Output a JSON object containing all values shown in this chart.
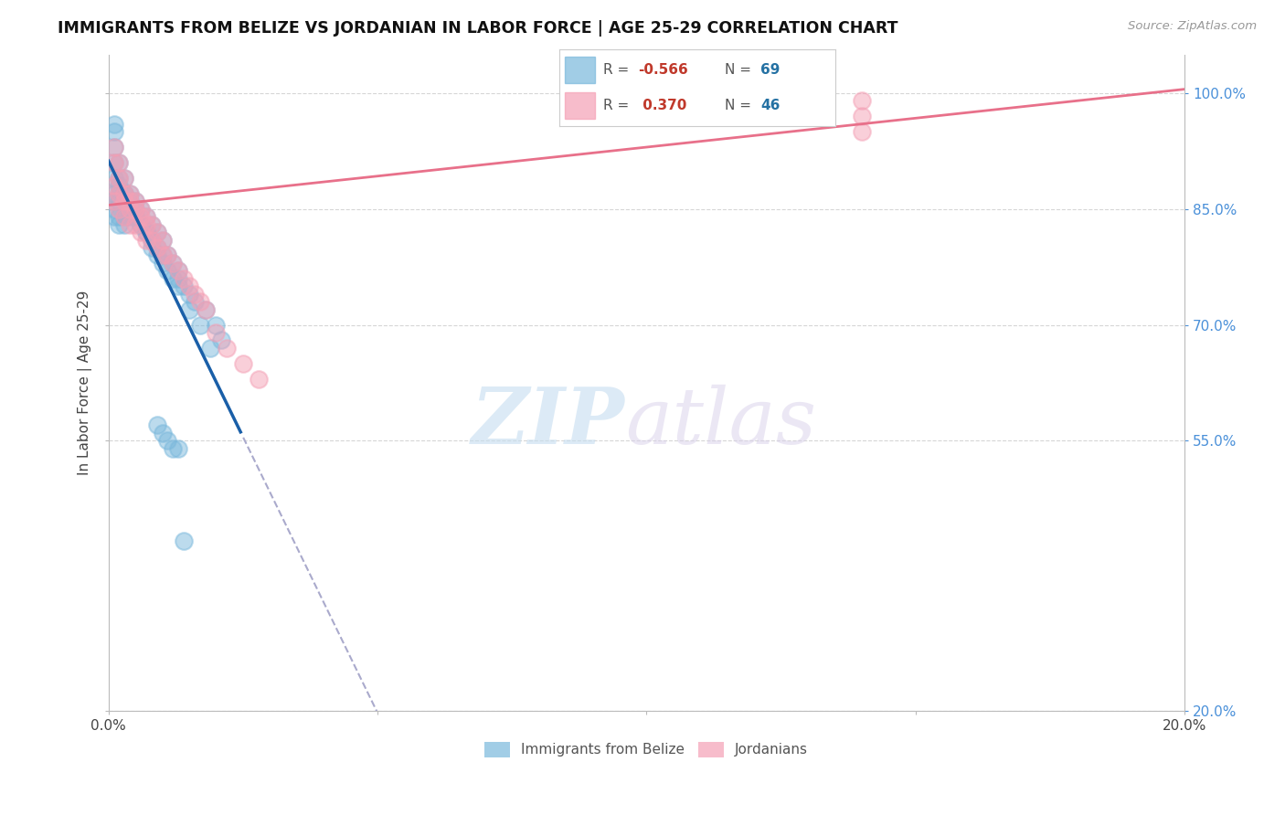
{
  "title": "IMMIGRANTS FROM BELIZE VS JORDANIAN IN LABOR FORCE | AGE 25-29 CORRELATION CHART",
  "source": "Source: ZipAtlas.com",
  "ylabel": "In Labor Force | Age 25-29",
  "xlim": [
    0.0,
    0.2
  ],
  "ylim": [
    0.2,
    1.05
  ],
  "yticks": [
    0.2,
    0.55,
    0.7,
    0.85,
    1.0
  ],
  "ytick_labels": [
    "20.0%",
    "55.0%",
    "70.0%",
    "85.0%",
    "100.0%"
  ],
  "xticks": [
    0.0,
    0.05,
    0.1,
    0.15,
    0.2
  ],
  "xtick_labels": [
    "0.0%",
    "",
    "",
    "",
    "20.0%"
  ],
  "belize_color": "#7ab8dc",
  "jordan_color": "#f4a0b5",
  "trend_belize_color": "#1a5fa8",
  "trend_jordan_color": "#e8708a",
  "trend_dashed_color": "#aaaacc",
  "background_color": "#ffffff",
  "belize_x": [
    0.001,
    0.001,
    0.001,
    0.001,
    0.001,
    0.001,
    0.001,
    0.002,
    0.002,
    0.002,
    0.002,
    0.002,
    0.002,
    0.003,
    0.003,
    0.003,
    0.003,
    0.003,
    0.004,
    0.004,
    0.004,
    0.004,
    0.005,
    0.005,
    0.005,
    0.006,
    0.006,
    0.007,
    0.007,
    0.008,
    0.008,
    0.009,
    0.009,
    0.01,
    0.01,
    0.011,
    0.012,
    0.013,
    0.013,
    0.014,
    0.015,
    0.016,
    0.018,
    0.02,
    0.021,
    0.001,
    0.001,
    0.002,
    0.003,
    0.004,
    0.005,
    0.006,
    0.007,
    0.008,
    0.009,
    0.01,
    0.011,
    0.012,
    0.013,
    0.015,
    0.017,
    0.019,
    0.009,
    0.01,
    0.011,
    0.012,
    0.013,
    0.014
  ],
  "belize_y": [
    0.93,
    0.91,
    0.89,
    0.87,
    0.86,
    0.85,
    0.84,
    0.91,
    0.89,
    0.87,
    0.86,
    0.84,
    0.83,
    0.89,
    0.87,
    0.86,
    0.84,
    0.83,
    0.87,
    0.86,
    0.85,
    0.84,
    0.86,
    0.85,
    0.84,
    0.85,
    0.83,
    0.84,
    0.82,
    0.83,
    0.81,
    0.82,
    0.8,
    0.81,
    0.79,
    0.79,
    0.78,
    0.77,
    0.76,
    0.75,
    0.74,
    0.73,
    0.72,
    0.7,
    0.68,
    0.95,
    0.96,
    0.88,
    0.87,
    0.85,
    0.84,
    0.83,
    0.82,
    0.8,
    0.79,
    0.78,
    0.77,
    0.76,
    0.75,
    0.72,
    0.7,
    0.67,
    0.57,
    0.56,
    0.55,
    0.54,
    0.54,
    0.42
  ],
  "jordan_x": [
    0.001,
    0.001,
    0.001,
    0.001,
    0.002,
    0.002,
    0.002,
    0.002,
    0.003,
    0.003,
    0.003,
    0.003,
    0.004,
    0.004,
    0.004,
    0.004,
    0.005,
    0.005,
    0.005,
    0.006,
    0.006,
    0.006,
    0.007,
    0.007,
    0.007,
    0.008,
    0.008,
    0.009,
    0.009,
    0.01,
    0.01,
    0.011,
    0.012,
    0.013,
    0.014,
    0.015,
    0.016,
    0.017,
    0.018,
    0.02,
    0.022,
    0.025,
    0.028,
    0.14,
    0.14,
    0.14
  ],
  "jordan_y": [
    0.93,
    0.91,
    0.88,
    0.86,
    0.91,
    0.89,
    0.87,
    0.85,
    0.89,
    0.87,
    0.86,
    0.84,
    0.87,
    0.86,
    0.85,
    0.83,
    0.86,
    0.85,
    0.83,
    0.85,
    0.84,
    0.82,
    0.84,
    0.83,
    0.81,
    0.83,
    0.81,
    0.82,
    0.8,
    0.81,
    0.79,
    0.79,
    0.78,
    0.77,
    0.76,
    0.75,
    0.74,
    0.73,
    0.72,
    0.69,
    0.67,
    0.65,
    0.63,
    0.99,
    0.97,
    0.95
  ]
}
